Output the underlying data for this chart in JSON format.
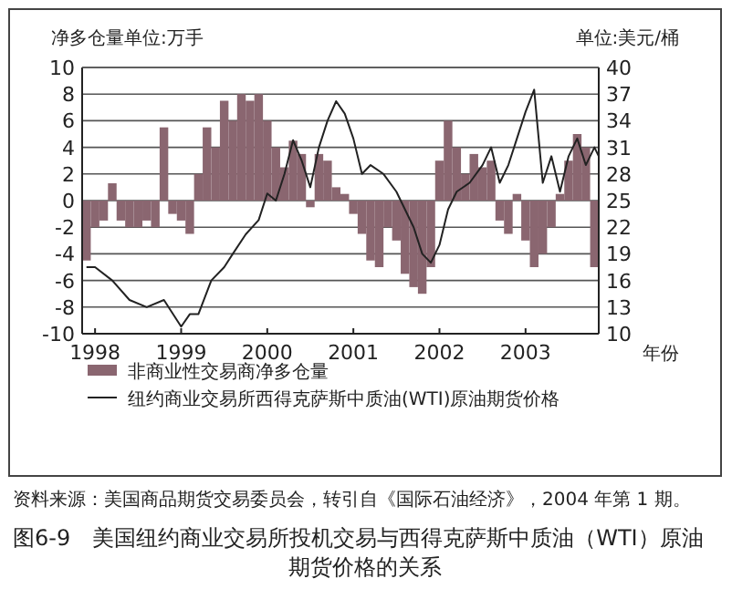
{
  "chart_data": {
    "type": "bar",
    "title": "图6-9　美国纽约商业交易所投机交易与西得克萨斯中质油（WTI）原油期货价格的关系",
    "ylabel": "净多仓量单位:万手",
    "y2label": "单位:美元/桶",
    "xlabel": "年份",
    "annotations": [
      "资料来源：美国商品期货交易委员会，转引自《国际石油经济》，2004 年第 1 期。"
    ],
    "xlim": [
      1997.85,
      2003.85
    ],
    "xticks": [
      1998,
      1999,
      2000,
      2001,
      2002,
      2003
    ],
    "ylim": [
      -10,
      10
    ],
    "yticks": [
      -10,
      -8,
      -6,
      -4,
      -2,
      0,
      2,
      4,
      6,
      8,
      10
    ],
    "y2lim": [
      10,
      40
    ],
    "y2ticks": [
      10,
      13,
      16,
      19,
      22,
      25,
      28,
      31,
      34,
      37,
      40
    ],
    "grid": "y",
    "legend": "bottom",
    "series": [
      {
        "name": "非商业性交易商净多仓量",
        "color": "#8a6670",
        "x": [
          1997.9,
          1998.0,
          1998.1,
          1998.2,
          1998.3,
          1998.4,
          1998.5,
          1998.6,
          1998.7,
          1998.8,
          1998.9,
          1999.0,
          1999.1,
          1999.2,
          1999.3,
          1999.4,
          1999.5,
          1999.6,
          1999.7,
          1999.8,
          1999.9,
          2000.0,
          2000.1,
          2000.2,
          2000.3,
          2000.4,
          2000.5,
          2000.6,
          2000.7,
          2000.8,
          2000.9,
          2001.0,
          2001.1,
          2001.2,
          2001.3,
          2001.4,
          2001.5,
          2001.6,
          2001.7,
          2001.8,
          2001.9,
          2002.0,
          2002.1,
          2002.2,
          2002.3,
          2002.4,
          2002.5,
          2002.6,
          2002.7,
          2002.8,
          2002.9,
          2003.0,
          2003.1,
          2003.2,
          2003.3,
          2003.4,
          2003.5,
          2003.6,
          2003.7,
          2003.8
        ],
        "values": [
          -4.5,
          -2,
          -1.5,
          1.3,
          -1.5,
          -2,
          -2,
          -1.5,
          -2,
          5.5,
          -1,
          -1.5,
          -2.5,
          2,
          5.5,
          4,
          7.5,
          6,
          8,
          7.5,
          8,
          6,
          4,
          2.5,
          4.5,
          3.5,
          -0.5,
          3.5,
          3,
          1,
          0.5,
          -1,
          -2.5,
          -4.5,
          -5,
          -2,
          -3,
          -5.5,
          -6.5,
          -7,
          -5,
          3,
          6,
          4,
          2,
          3.5,
          2.5,
          3,
          -1.5,
          -2.5,
          0.5,
          -3,
          -5,
          -4,
          -2,
          0.5,
          3,
          5,
          4,
          -5
        ]
      },
      {
        "type": "line",
        "axis": "y2",
        "name": "纽约商业交易所西得克萨斯中质油(WTI)原油期货价格",
        "color": "#222222",
        "x": [
          1997.9,
          1998.0,
          1998.2,
          1998.4,
          1998.6,
          1998.8,
          1999.0,
          1999.1,
          1999.2,
          1999.35,
          1999.5,
          1999.6,
          1999.75,
          1999.9,
          2000.0,
          2000.1,
          2000.2,
          2000.3,
          2000.4,
          2000.5,
          2000.6,
          2000.7,
          2000.8,
          2000.9,
          2001.0,
          2001.1,
          2001.2,
          2001.35,
          2001.5,
          2001.7,
          2001.8,
          2001.9,
          2002.0,
          2002.1,
          2002.2,
          2002.35,
          2002.5,
          2002.6,
          2002.7,
          2002.8,
          2002.9,
          2003.0,
          2003.1,
          2003.2,
          2003.3,
          2003.4,
          2003.5,
          2003.6,
          2003.7,
          2003.8,
          2003.85
        ],
        "values": [
          17.5,
          17.5,
          16,
          13.8,
          13,
          13.8,
          10.8,
          12.2,
          12.2,
          16,
          17.5,
          19,
          21.2,
          22.8,
          25.8,
          25,
          28,
          31.8,
          29.5,
          26.5,
          31,
          34,
          36.2,
          34.8,
          32,
          28,
          29,
          28,
          26,
          22,
          19,
          18,
          20,
          24,
          26,
          27,
          29,
          31,
          27,
          29,
          32,
          35,
          37.5,
          27,
          30,
          26,
          30,
          32,
          29,
          31,
          30
        ]
      }
    ]
  }
}
